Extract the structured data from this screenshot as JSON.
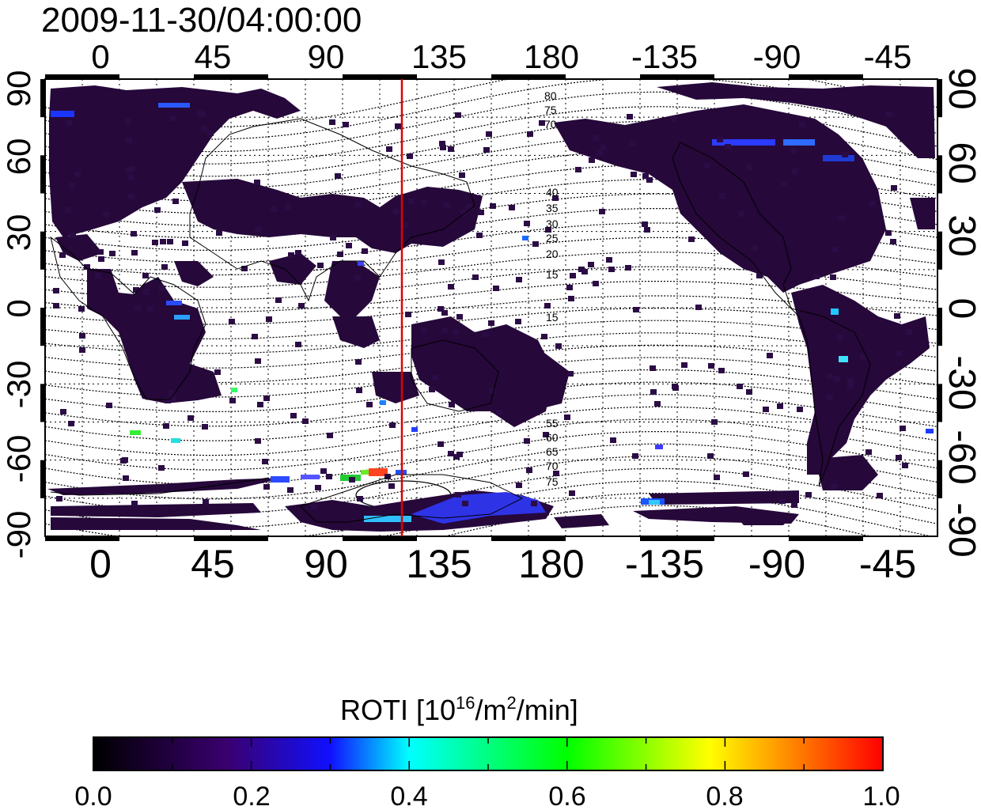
{
  "title": "2009-11-30/04:00:00",
  "map": {
    "lon_labels": [
      "0",
      "45",
      "90",
      "135",
      "180",
      "-135",
      "-90",
      "-45"
    ],
    "lat_labels_left": [
      "90",
      "60",
      "30",
      "0",
      "-30",
      "-60",
      "-90"
    ],
    "lat_labels_right": [
      "90",
      "60",
      "30",
      "0",
      "-30",
      "-60",
      "-90"
    ],
    "contour_labels_north": [
      "80",
      "75",
      "70",
      "40",
      "35",
      "30",
      "25",
      "20",
      "15"
    ],
    "contour_labels_south": [
      "15",
      "55",
      "60",
      "65",
      "70",
      "75"
    ],
    "meridian_line_color": "#e00000"
  },
  "colorbar": {
    "title_main": "ROTI  [10",
    "title_sup1": "16",
    "title_mid": "/m",
    "title_sup2": "2",
    "title_end": "/min]",
    "tick_labels": [
      "0.0",
      "0.2",
      "0.4",
      "0.6",
      "0.8",
      "1.0"
    ],
    "stops": [
      "#000000",
      "#3a0070",
      "#0000ff",
      "#00ffff",
      "#00ff00",
      "#ffff00",
      "#ff0000"
    ]
  }
}
